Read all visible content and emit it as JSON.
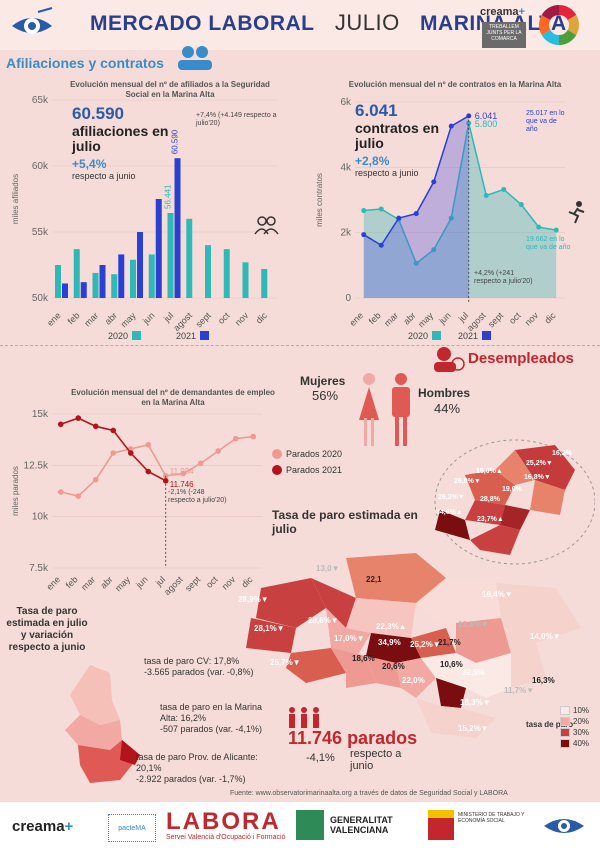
{
  "header": {
    "title_left": "MERCADO LABORAL",
    "title_month": "JULIO",
    "title_right": "MARINA ALTA",
    "brand": "creama",
    "treballem": "TREBALLEM JUNTS PER LA COMARCA"
  },
  "sections": {
    "afiliaciones": "Afiliaciones y contratos",
    "desempleados": "Desempleados"
  },
  "colors": {
    "series_2020": "#2fb8b8",
    "series_2021": "#2b3fd1",
    "parados_2020": "#ee9a92",
    "parados_2021": "#b3141b",
    "accent_blue": "#2a5ba8",
    "accent_red": "#c1272d"
  },
  "affiliates_box": {
    "value": "60.590",
    "label": "afiliaciones en julio",
    "pct": "+5,4%",
    "pct_label": "respecto a junio",
    "annotation": "+7,4% (+4.149 respecto a julio'20)"
  },
  "contracts_box": {
    "value": "6.041",
    "label": "contratos en julio",
    "pct": "+2,8%",
    "pct_label": "respecto a junio",
    "annotation": "+4,2% (+241 respecto a julio'20)",
    "ytd_2021": "25.017 en lo que va de año",
    "ytd_2020": "19.662 en lo que va de año"
  },
  "unemployed_box": {
    "annotation": "-2,1% (-248 respecto a julio'20)",
    "total": "11.746 parados",
    "pct": "-4,1%",
    "pct_label": "respecto a junio"
  },
  "gender": {
    "women_label": "Mujeres",
    "women_pct": "56%",
    "men_label": "Hombres",
    "men_pct": "44%"
  },
  "map": {
    "title": "Tasa de paro estimada en julio",
    "region_title": "Tasa de paro estimada en julio y variación respecto a junio",
    "cv": "tasa de paro CV: 17,8%",
    "cv_detail": "-3.565 parados (var. -0,8%)",
    "ma": "tasa de paro en la Marina Alta: 16,2%",
    "ma_detail": "-507 parados (var. -4,1%)",
    "prov": "tasa de paro Prov. de Alicante: 20,1%",
    "prov_detail": "-2.922 parados (var. -1,7%)",
    "legend_title": "tasa de paro",
    "legend": [
      "10%",
      "20%",
      "30%",
      "40%"
    ],
    "labels": [
      "13,0▼",
      "22,1",
      "28,9%▼",
      "28,6%▼",
      "28,1%▼",
      "17,0%▼",
      "22,3%▲",
      "34,9%",
      "25,2%▼",
      "21,7%",
      "16,4%▼",
      "13,4%▼",
      "14,0%▼",
      "18,6%",
      "20,6%",
      "22,0%",
      "10,6%",
      "32,5%",
      "25,7%▼",
      "11,7%▼",
      "16,3%",
      "16,3%▼",
      "15,2%▼"
    ],
    "zoom_labels": [
      "16,2%",
      "25,2%▼",
      "15,0%▲",
      "26,0%▼",
      "16,8%▼",
      "19,0%",
      "26,3%▼",
      "28,8%",
      "34,6%▲",
      "23,7%▲"
    ]
  },
  "source": "Fuente: www.observatorimarinaalta.org a través de datos de Seguridad Social y LABORA",
  "footer": {
    "creama": "creama",
    "pactema": "pacteMA",
    "labora": "LABORA",
    "labora_sub": "Servei Valencià d'Ocupació i Formació",
    "gva": "GENERALITAT VALENCIANA",
    "ministerio": "MINISTERIO DE TRABAJO Y ECONOMÍA SOCIAL"
  },
  "chart_data": [
    {
      "type": "bar",
      "title": "Evolución mensual del nº de afiliados a la Seguridad Social en la Marina Alta",
      "ylabel": "miles afiliados",
      "categories": [
        "ene",
        "feb",
        "mar",
        "abr",
        "may",
        "jun",
        "jul",
        "agost",
        "sept",
        "oct",
        "nov",
        "dic"
      ],
      "ylim": [
        50000,
        65000
      ],
      "yticks": [
        "50k",
        "55k",
        "60k",
        "65k"
      ],
      "series": [
        {
          "name": "2020",
          "values": [
            52500,
            53700,
            51900,
            51800,
            52900,
            53300,
            56441,
            56000,
            54000,
            53700,
            52700,
            52200
          ]
        },
        {
          "name": "2021",
          "values": [
            51100,
            51200,
            52500,
            53300,
            55000,
            57500,
            60590,
            null,
            null,
            null,
            null,
            null
          ]
        }
      ],
      "data_labels": {
        "2020_jul": "56.441",
        "2021_jul": "60.590"
      }
    },
    {
      "type": "area",
      "title": "Evolución mensual del nº de contratos en la Marina Alta",
      "ylabel": "miles contratos",
      "categories": [
        "ene",
        "feb",
        "mar",
        "abr",
        "may",
        "jun",
        "jul",
        "agost",
        "sept",
        "oct",
        "nov",
        "dic"
      ],
      "ylim": [
        0,
        6500
      ],
      "yticks": [
        "0",
        "2k",
        "4k",
        "6k"
      ],
      "series": [
        {
          "name": "2020",
          "values": [
            2900,
            2950,
            2600,
            1150,
            1600,
            2650,
            5800,
            3400,
            3600,
            3100,
            2350,
            2250
          ]
        },
        {
          "name": "2021",
          "values": [
            2100,
            1750,
            2650,
            2800,
            3850,
            5700,
            6041,
            null,
            null,
            null,
            null,
            null
          ]
        }
      ],
      "data_labels": {
        "2021_jul": "6.041",
        "2020_jul": "5.800"
      }
    },
    {
      "type": "line",
      "title": "Evolución mensual del nº de demandantes de empleo en la Marina Alta",
      "ylabel": "miles parados",
      "categories": [
        "ene",
        "feb",
        "mar",
        "abr",
        "may",
        "jun",
        "jul",
        "agost",
        "sept",
        "oct",
        "nov",
        "dic"
      ],
      "ylim": [
        7500,
        15000
      ],
      "yticks": [
        "7.5k",
        "10k",
        "12.5k",
        "15k"
      ],
      "series": [
        {
          "name": "Parados 2020",
          "values": [
            11200,
            11000,
            11800,
            13100,
            13300,
            13500,
            11984,
            12100,
            12600,
            13200,
            13800,
            13900
          ]
        },
        {
          "name": "Parados 2021",
          "values": [
            14500,
            14800,
            14400,
            14200,
            13100,
            12200,
            11746,
            null,
            null,
            null,
            null,
            null
          ]
        }
      ],
      "data_labels": {
        "2020_jul": "11.984",
        "2021_jul": "11.746"
      }
    }
  ]
}
